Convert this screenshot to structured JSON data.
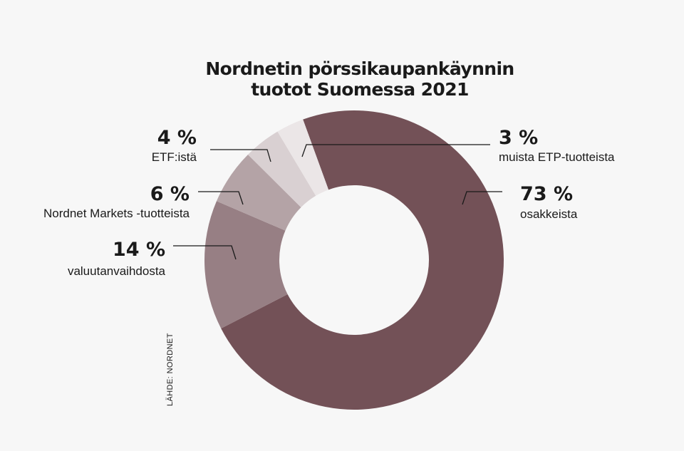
{
  "title": {
    "line1": "Nordnetin pörssikaupankäynnin",
    "line2": "tuotot Suomessa 2021"
  },
  "source": "LÄHDE: NORDNET",
  "chart_data": {
    "type": "pie",
    "donut": true,
    "title": "Nordnetin pörssikaupankäynnin tuotot Suomessa 2021",
    "slices": [
      {
        "value": 73,
        "value_label": "73 %",
        "label": "osakkeista",
        "color": "#735157"
      },
      {
        "value": 14,
        "value_label": "14 %",
        "label": "valuutanvaihdosta",
        "color": "#977f84"
      },
      {
        "value": 6,
        "value_label": "6 %",
        "label": "Nordnet Markets -tuotteista",
        "color": "#b4a3a6"
      },
      {
        "value": 4,
        "value_label": "4 %",
        "label": "ETF:istä",
        "color": "#d9d0d2"
      },
      {
        "value": 3,
        "value_label": "3 %",
        "label": "muista ETP-tuotteista",
        "color": "#ebe6e7"
      }
    ]
  }
}
